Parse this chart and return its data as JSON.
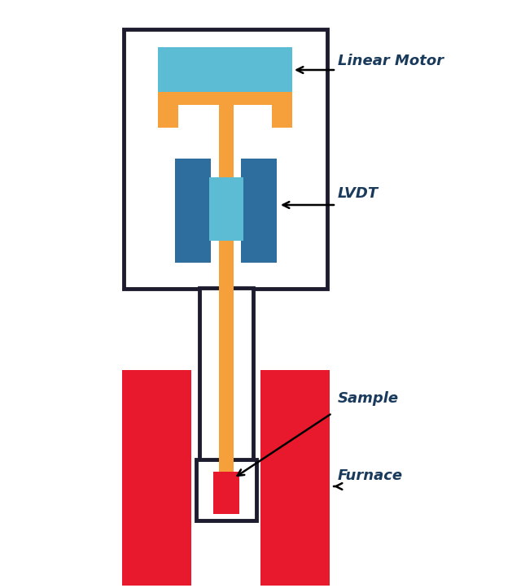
{
  "bg_color": "#ffffff",
  "outline_color": "#1c1c2e",
  "orange_color": "#F5A03A",
  "blue_light": "#5BBCD4",
  "blue_dark": "#2E6E9E",
  "red_color": "#E8192C",
  "text_color": "#1a3a5c",
  "fig_w": 6.29,
  "fig_h": 7.23,
  "labels": {
    "linear_motor": "Linear Motor",
    "lvdt": "LVDT",
    "sample": "Sample",
    "furnace": "Furnace"
  }
}
